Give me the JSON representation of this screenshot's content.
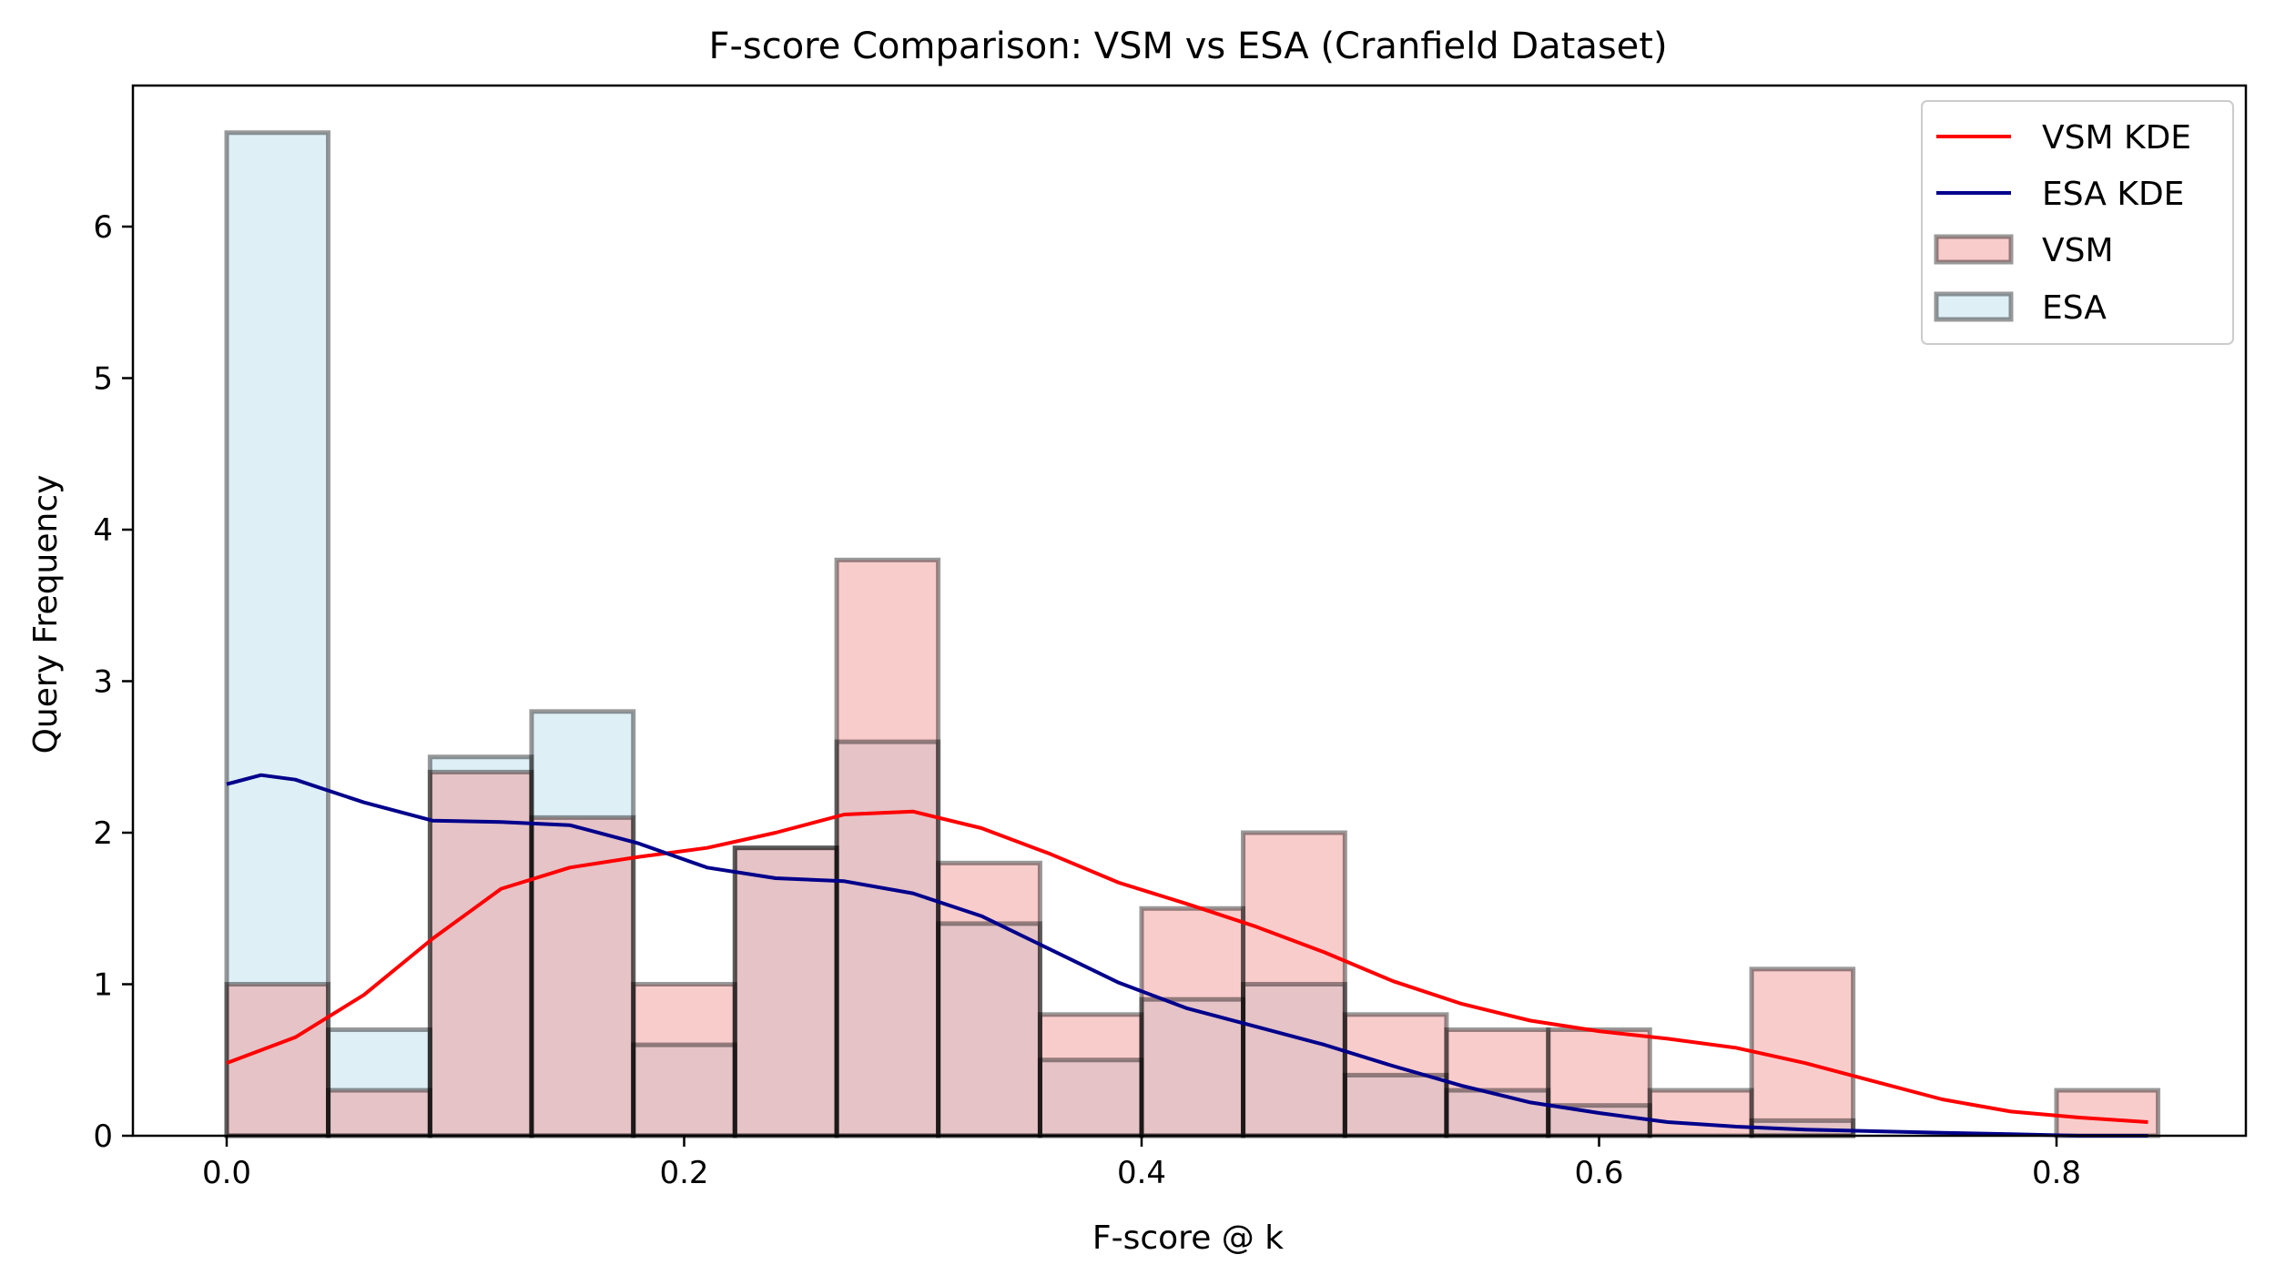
{
  "chart_data": {
    "type": "bar",
    "subtype": "overlaid-histogram-with-kde",
    "title": "F-score Comparison: VSM vs ESA (Cranfield Dataset)",
    "xlabel": "F-score @ k",
    "ylabel": "Query Frequency",
    "xlim": [
      -0.1,
      2.2
    ],
    "ylim": [
      0,
      6.95
    ],
    "x_ticks": [
      0.0,
      0.2,
      0.4,
      0.6,
      0.8
    ],
    "x_tick_labels": [
      "0.0",
      "0.2",
      "0.4",
      "0.6",
      "0.8"
    ],
    "y_ticks": [
      0,
      1,
      2,
      3,
      4,
      5,
      6
    ],
    "y_tick_labels": [
      "0",
      "1",
      "2",
      "3",
      "4",
      "5",
      "6"
    ],
    "grid": false,
    "legend_position": "top-right",
    "bin_edges": [
      0.0,
      0.0444,
      0.0889,
      0.1333,
      0.1778,
      0.2222,
      0.2667,
      0.3111,
      0.3556,
      0.4,
      0.4444,
      0.4889,
      0.5333,
      0.5778,
      0.6222,
      0.6667,
      0.7111,
      0.7556,
      0.8,
      0.8444
    ],
    "series": [
      {
        "name": "ESA",
        "kind": "histogram",
        "color": "#add8e6",
        "values": [
          6.62,
          0.7,
          2.5,
          2.8,
          0.6,
          1.9,
          2.6,
          1.4,
          0.5,
          0.9,
          1.0,
          0.4,
          0.3,
          0.2,
          0.0,
          0.1,
          0.0,
          0.0,
          0.0
        ]
      },
      {
        "name": "VSM",
        "kind": "histogram",
        "color": "#f08080",
        "values": [
          1.0,
          0.3,
          2.4,
          2.1,
          1.0,
          1.9,
          3.8,
          1.8,
          0.8,
          1.5,
          2.0,
          0.8,
          0.7,
          0.7,
          0.3,
          1.1,
          0.0,
          0.0,
          0.3
        ]
      },
      {
        "name": "VSM KDE",
        "kind": "line",
        "color": "#ff0000",
        "x": [
          0.0,
          0.03,
          0.06,
          0.09,
          0.12,
          0.15,
          0.18,
          0.21,
          0.24,
          0.27,
          0.3,
          0.33,
          0.36,
          0.39,
          0.42,
          0.45,
          0.48,
          0.51,
          0.54,
          0.57,
          0.6,
          0.63,
          0.66,
          0.69,
          0.72,
          0.75,
          0.78,
          0.81,
          0.84
        ],
        "y": [
          0.48,
          0.65,
          0.93,
          1.3,
          1.63,
          1.77,
          1.84,
          1.9,
          2.0,
          2.12,
          2.14,
          2.03,
          1.86,
          1.67,
          1.53,
          1.38,
          1.21,
          1.02,
          0.87,
          0.76,
          0.69,
          0.64,
          0.58,
          0.48,
          0.36,
          0.24,
          0.16,
          0.12,
          0.09
        ]
      },
      {
        "name": "ESA KDE",
        "kind": "line",
        "color": "#00008b",
        "x": [
          0.0,
          0.015,
          0.03,
          0.06,
          0.09,
          0.12,
          0.15,
          0.18,
          0.21,
          0.24,
          0.27,
          0.3,
          0.33,
          0.36,
          0.39,
          0.42,
          0.45,
          0.48,
          0.51,
          0.54,
          0.57,
          0.6,
          0.63,
          0.66,
          0.69,
          0.72,
          0.75,
          0.78,
          0.81,
          0.84
        ],
        "y": [
          2.32,
          2.38,
          2.35,
          2.2,
          2.08,
          2.07,
          2.05,
          1.93,
          1.77,
          1.7,
          1.68,
          1.6,
          1.45,
          1.23,
          1.01,
          0.84,
          0.72,
          0.6,
          0.46,
          0.33,
          0.22,
          0.15,
          0.09,
          0.06,
          0.04,
          0.03,
          0.02,
          0.01,
          0.0,
          0.0
        ]
      }
    ],
    "legend": [
      {
        "label": "VSM KDE",
        "kind": "line",
        "color": "#ff0000"
      },
      {
        "label": "ESA KDE",
        "kind": "line",
        "color": "#00008b"
      },
      {
        "label": "VSM",
        "kind": "patch",
        "color": "#f08080"
      },
      {
        "label": "ESA",
        "kind": "patch",
        "color": "#add8e6"
      }
    ]
  }
}
